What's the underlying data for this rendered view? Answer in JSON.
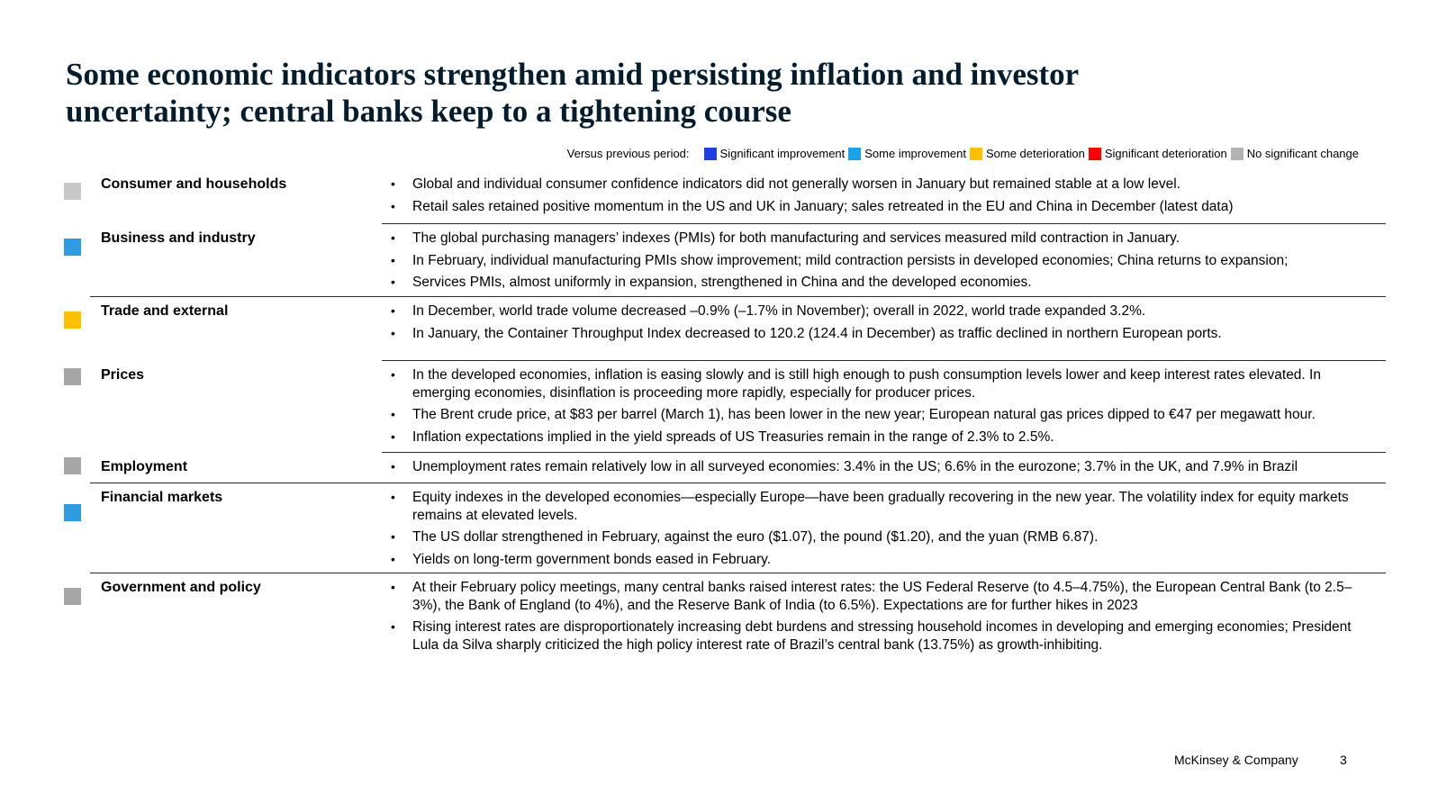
{
  "title": {
    "line1": "Some economic indicators strengthen amid persisting inflation and investor",
    "line2": "uncertainty; central banks keep to a tightening course"
  },
  "legend": {
    "lead": "Versus previous period:",
    "items": [
      {
        "label": "Significant improvement",
        "color": "#1f3fe0"
      },
      {
        "label": "Some improvement",
        "color": "#1aa3e8"
      },
      {
        "label": "Some deterioration",
        "color": "#ffc000"
      },
      {
        "label": "Significant deterioration",
        "color": "#ff0000"
      },
      {
        "label": "No significant change",
        "color": "#b3b3b3"
      }
    ]
  },
  "sections": [
    {
      "name": "Consumer and households",
      "status_color": "#c8c8c8",
      "bullets": [
        "Global and individual consumer confidence indicators did not generally worsen in January but remained stable at a low level.",
        "Retail sales retained positive momentum in the US and UK in January; sales retreated in the EU and China in December (latest data)"
      ]
    },
    {
      "name": "Business and industry",
      "status_color": "#2f9be0",
      "bullets": [
        "The global purchasing managers’ indexes (PMIs) for both manufacturing and services measured mild contraction in January.",
        "In February, individual manufacturing PMIs show improvement; mild contraction persists in developed economies; China returns to expansion;",
        "Services PMIs, almost uniformly in expansion, strengthened in China and the developed economies."
      ]
    },
    {
      "name": "Trade and external",
      "status_color": "#ffc000",
      "bullets": [
        "In December, world trade volume decreased –0.9% (–1.7% in November); overall in 2022, world trade expanded 3.2%.",
        "In January, the Container Throughput Index decreased to 120.2 (124.4 in December) as traffic declined in northern European ports."
      ]
    },
    {
      "name": "Prices",
      "status_color": "#a6a6a6",
      "bullets": [
        "In the developed economies, inflation is easing slowly and is still high enough to push consumption levels lower and keep interest rates elevated. In emerging economies, disinflation is proceeding more rapidly, especially for producer prices.",
        "The Brent crude price, at $83 per barrel (March 1), has been lower in the new year; European natural gas prices dipped to €47 per megawatt hour.",
        "Inflation expectations implied in the yield spreads of US Treasuries remain in the range of 2.3% to 2.5%."
      ]
    },
    {
      "name": "Employment",
      "status_color": "#a6a6a6",
      "bullets": [
        "Unemployment rates remain relatively low in all surveyed economies: 3.4% in the US; 6.6% in the eurozone; 3.7% in the UK, and 7.9% in Brazil"
      ]
    },
    {
      "name": "Financial markets",
      "status_color": "#2f9be0",
      "bullets": [
        "Equity indexes in the developed economies—especially Europe—have been gradually recovering in the new year. The volatility index for equity markets remains at elevated levels.",
        "The US dollar strengthened in February, against the euro ($1.07), the pound ($1.20), and the yuan (RMB 6.87).",
        "Yields on long-term government bonds eased in February."
      ]
    },
    {
      "name": "Government and policy",
      "status_color": "#a6a6a6",
      "bullets": [
        "At their February policy meetings, many central banks raised interest rates: the US Federal Reserve (to 4.5–4.75%), the European Central Bank (to 2.5–3%), the Bank of England (to 4%), and the Reserve Bank of India (to 6.5%). Expectations are for further hikes in 2023",
        "Rising interest rates are disproportionately increasing debt burdens and stressing household incomes in developing and emerging economies; President Lula da Silva sharply criticized the high policy interest rate of Brazil’s central bank (13.75%) as growth-inhibiting."
      ]
    }
  ],
  "footer": {
    "brand": "McKinsey & Company",
    "page": "3"
  }
}
